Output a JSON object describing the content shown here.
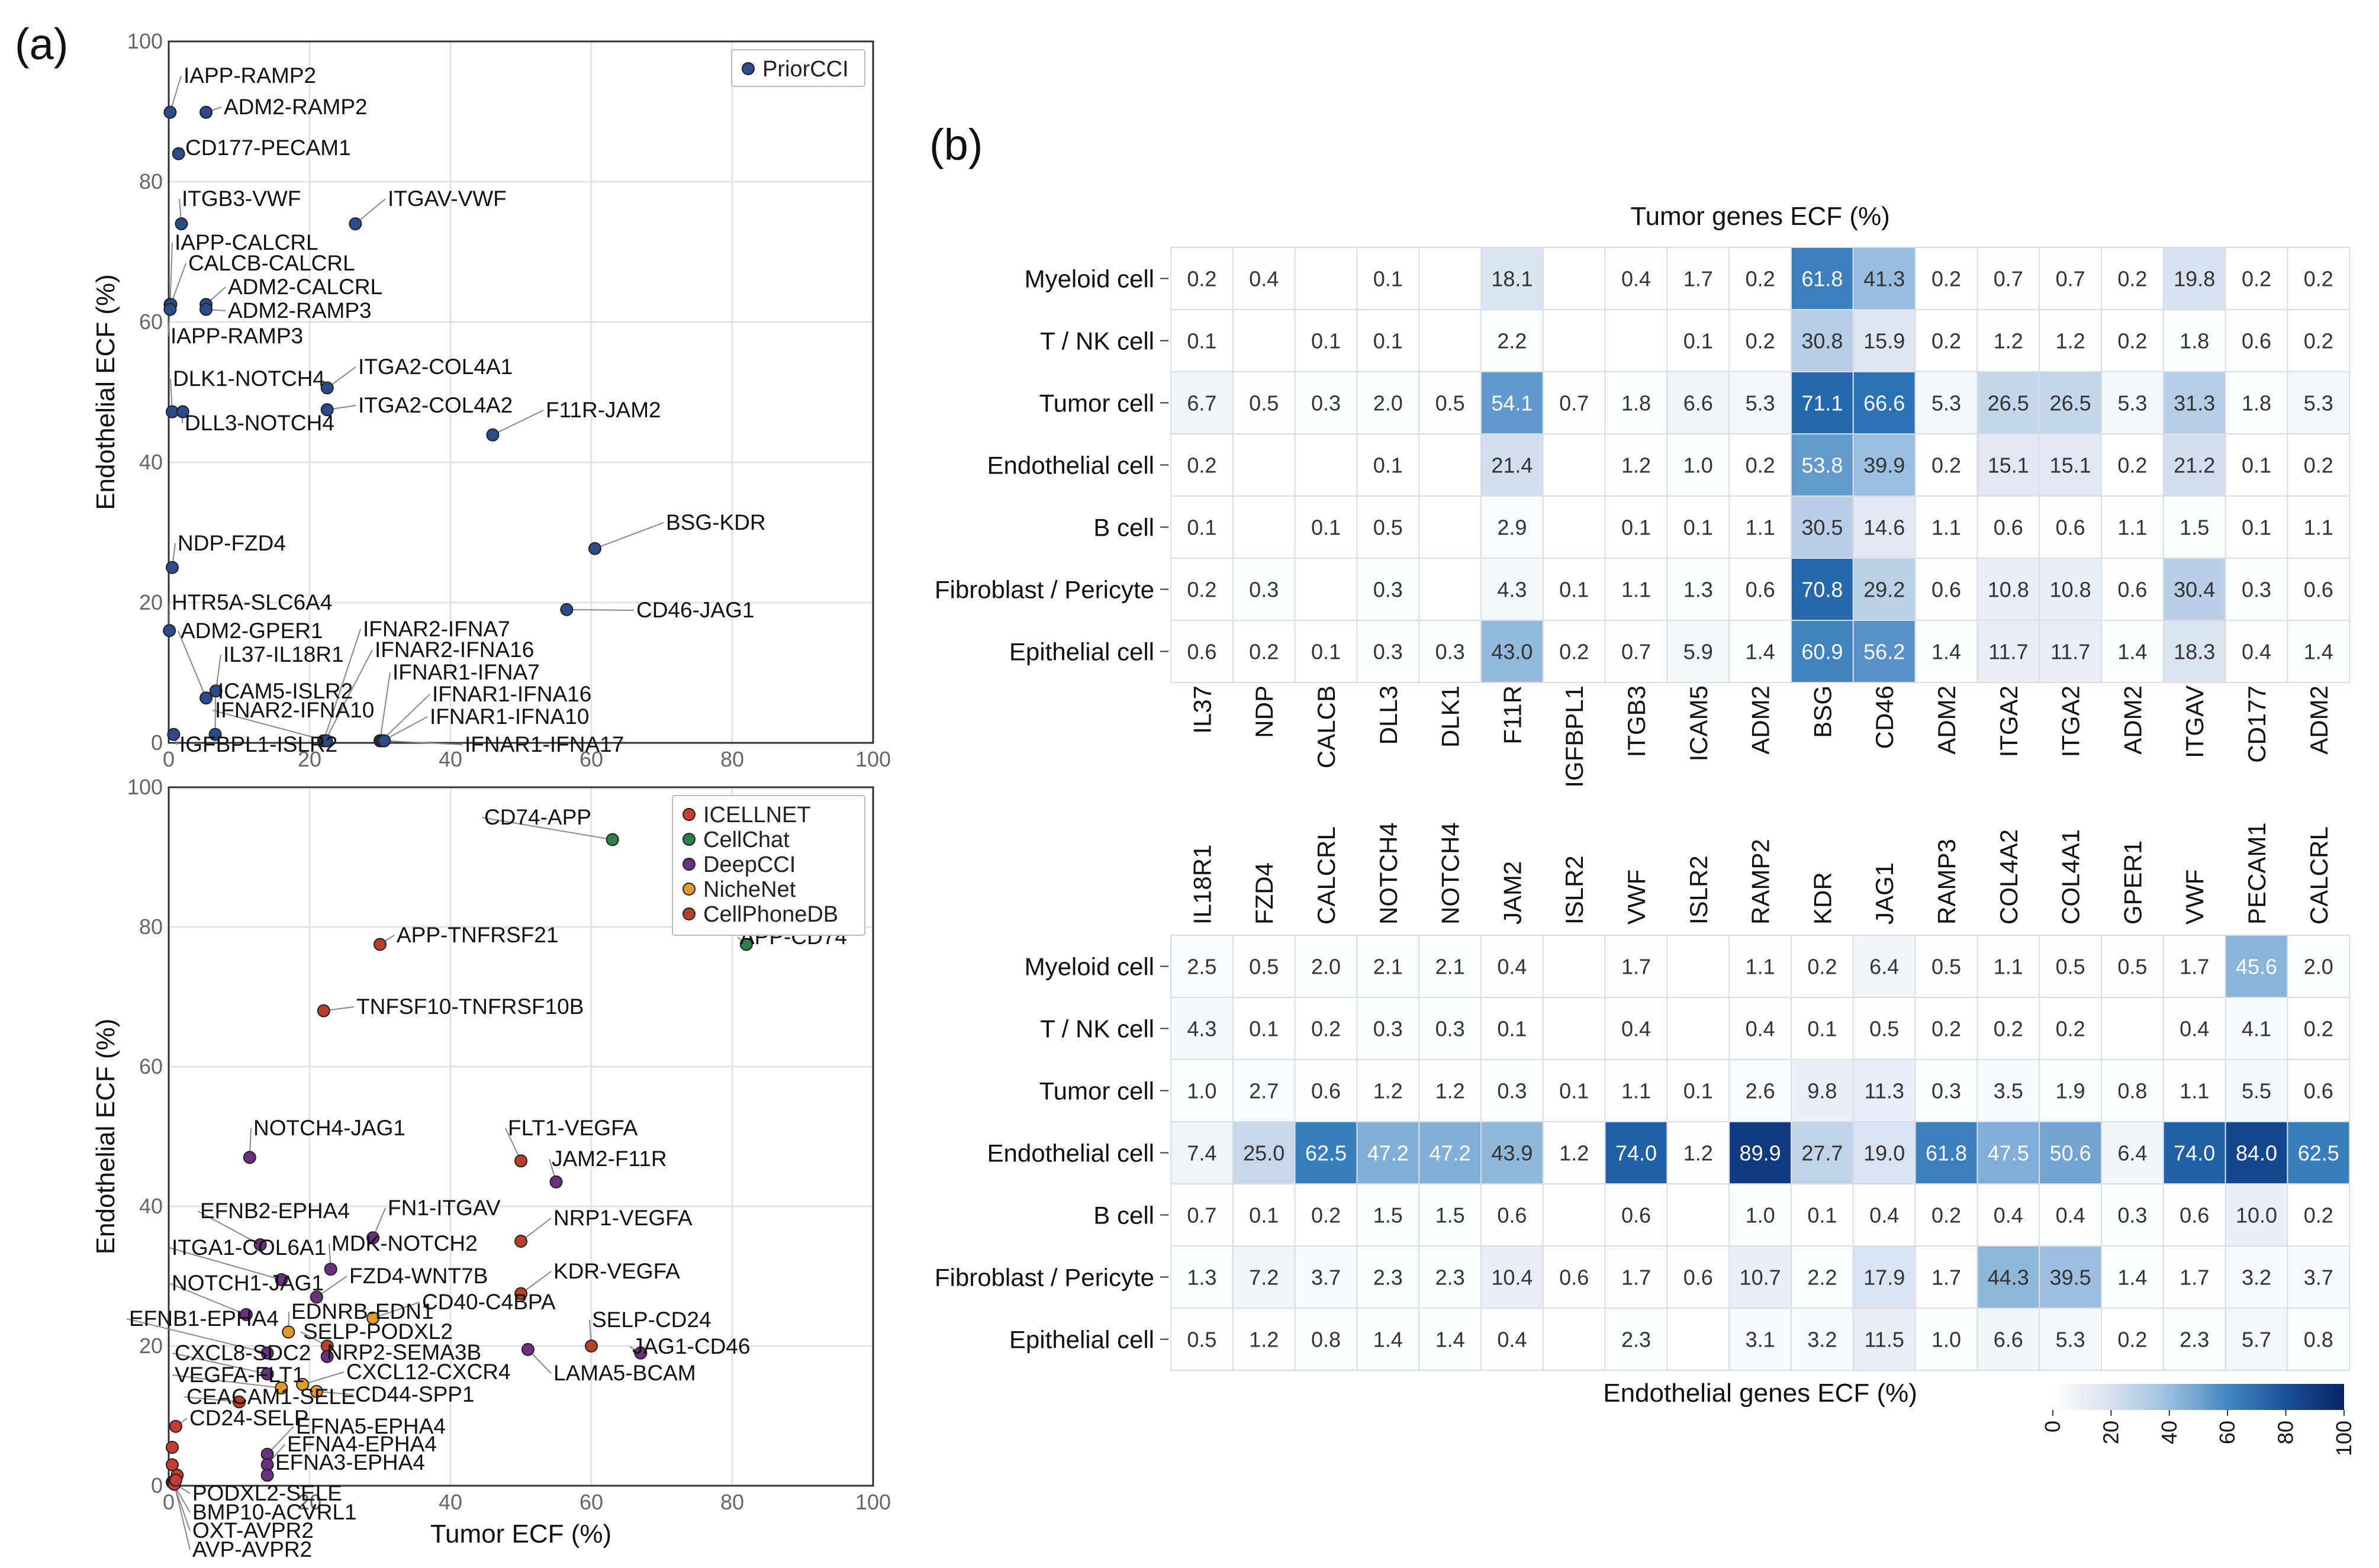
{
  "panel_labels": {
    "a": "(a)",
    "b": "(b)"
  },
  "colors": {
    "PriorCCI": "#2b4a8a",
    "ICELLNET": "#c83a32",
    "CellChat": "#2e7d4a",
    "DeepCCI": "#6a2f80",
    "NicheNet": "#e09a2a",
    "CellPhoneDB": "#b5402a",
    "heat_low": "#ffffff",
    "heat_high": "#0b2a6b"
  },
  "chart_data": [
    {
      "type": "scatter",
      "id": "scatter-top",
      "xlim": [
        0,
        100
      ],
      "ylim": [
        0,
        100
      ],
      "xticks": [
        "0",
        "20",
        "40",
        "60",
        "80",
        "100"
      ],
      "yticks": [
        "0",
        "20",
        "40",
        "60",
        "80",
        "100"
      ],
      "xlabel": "",
      "ylabel": "Endothelial ECF (%)",
      "grid": true,
      "legend": {
        "position": "top-right",
        "entries": [
          {
            "name": "PriorCCI",
            "color_key": "PriorCCI"
          }
        ]
      },
      "points": [
        {
          "label": "IAPP-RAMP2",
          "x": 0.2,
          "y": 89.9,
          "g": "PriorCCI"
        },
        {
          "label": "ADM2-RAMP2",
          "x": 5.3,
          "y": 89.9,
          "g": "PriorCCI"
        },
        {
          "label": "CD177-PECAM1",
          "x": 1.4,
          "y": 84.0,
          "g": "PriorCCI"
        },
        {
          "label": "ITGB3-VWF",
          "x": 1.8,
          "y": 74.0,
          "g": "PriorCCI"
        },
        {
          "label": "ITGAV-VWF",
          "x": 26.5,
          "y": 74.0,
          "g": "PriorCCI"
        },
        {
          "label": "IAPP-CALCRL",
          "x": 0.2,
          "y": 62.5,
          "g": "PriorCCI"
        },
        {
          "label": "CALCB-CALCRL",
          "x": 0.3,
          "y": 62.5,
          "g": "PriorCCI"
        },
        {
          "label": "ADM2-CALCRL",
          "x": 5.3,
          "y": 62.5,
          "g": "PriorCCI"
        },
        {
          "label": "ADM2-RAMP3",
          "x": 5.3,
          "y": 61.8,
          "g": "PriorCCI"
        },
        {
          "label": "IAPP-RAMP3",
          "x": 0.2,
          "y": 61.8,
          "g": "PriorCCI"
        },
        {
          "label": "DLK1-NOTCH4",
          "x": 0.5,
          "y": 47.2,
          "g": "PriorCCI"
        },
        {
          "label": "ITGA2-COL4A1",
          "x": 22.5,
          "y": 50.6,
          "g": "PriorCCI"
        },
        {
          "label": "ITGA2-COL4A2",
          "x": 22.5,
          "y": 47.5,
          "g": "PriorCCI"
        },
        {
          "label": "DLL3-NOTCH4",
          "x": 2.0,
          "y": 47.2,
          "g": "PriorCCI"
        },
        {
          "label": "F11R-JAM2",
          "x": 46.0,
          "y": 43.9,
          "g": "PriorCCI"
        },
        {
          "label": "BSG-KDR",
          "x": 60.5,
          "y": 27.7,
          "g": "PriorCCI"
        },
        {
          "label": "NDP-FZD4",
          "x": 0.5,
          "y": 25.0,
          "g": "PriorCCI"
        },
        {
          "label": "CD46-JAG1",
          "x": 56.5,
          "y": 19.0,
          "g": "PriorCCI"
        },
        {
          "label": "HTR5A-SLC6A4",
          "x": 0.1,
          "y": 16.0,
          "g": "PriorCCI"
        },
        {
          "label": "ADM2-GPER1",
          "x": 5.3,
          "y": 6.4,
          "g": "PriorCCI"
        },
        {
          "label": "IL37-IL18R1",
          "x": 6.7,
          "y": 7.4,
          "g": "PriorCCI"
        },
        {
          "label": "ICAM5-ISLR2",
          "x": 6.6,
          "y": 1.2,
          "g": "PriorCCI"
        },
        {
          "label": "IFNAR2-IFNA7",
          "x": 22.0,
          "y": 0.3,
          "g": "PriorCCI"
        },
        {
          "label": "IFNAR2-IFNA16",
          "x": 22.2,
          "y": 0.3,
          "g": "PriorCCI"
        },
        {
          "label": "IFNAR1-IFNA7",
          "x": 30.0,
          "y": 0.3,
          "g": "PriorCCI"
        },
        {
          "label": "IFNAR2-IFNA10",
          "x": 22.4,
          "y": 0.3,
          "g": "PriorCCI"
        },
        {
          "label": "IFNAR1-IFNA16",
          "x": 30.2,
          "y": 0.3,
          "g": "PriorCCI"
        },
        {
          "label": "IFNAR1-IFNA10",
          "x": 30.4,
          "y": 0.3,
          "g": "PriorCCI"
        },
        {
          "label": "IGFBPL1-ISLR2",
          "x": 0.7,
          "y": 1.2,
          "g": "PriorCCI"
        },
        {
          "label": "IFNAR1-IFNA17",
          "x": 30.6,
          "y": 0.3,
          "g": "PriorCCI"
        }
      ]
    },
    {
      "type": "scatter",
      "id": "scatter-bottom",
      "xlim": [
        0,
        100
      ],
      "ylim": [
        0,
        100
      ],
      "xticks": [
        "0",
        "20",
        "40",
        "60",
        "80",
        "100"
      ],
      "yticks": [
        "0",
        "20",
        "40",
        "60",
        "80",
        "100"
      ],
      "xlabel": "Tumor ECF (%)",
      "ylabel": "Endothelial ECF (%)",
      "grid": true,
      "legend": {
        "position": "top-right",
        "entries": [
          {
            "name": "ICELLNET",
            "color_key": "ICELLNET"
          },
          {
            "name": "CellChat",
            "color_key": "CellChat"
          },
          {
            "name": "DeepCCI",
            "color_key": "DeepCCI"
          },
          {
            "name": "NicheNet",
            "color_key": "NicheNet"
          },
          {
            "name": "CellPhoneDB",
            "color_key": "CellPhoneDB"
          }
        ]
      },
      "points": [
        {
          "label": "CD74-APP",
          "x": 63.0,
          "y": 92.5,
          "g": "CellChat"
        },
        {
          "label": "APP-TNFRSF21",
          "x": 30.0,
          "y": 77.5,
          "g": "CellPhoneDB"
        },
        {
          "label": "APP-CD74",
          "x": 82.0,
          "y": 77.5,
          "g": "CellChat"
        },
        {
          "label": "TNFSF10-TNFRSF10B",
          "x": 22.0,
          "y": 68.0,
          "g": "CellPhoneDB"
        },
        {
          "label": "NOTCH4-JAG1",
          "x": 11.5,
          "y": 47.0,
          "g": "DeepCCI"
        },
        {
          "label": "FLT1-VEGFA",
          "x": 50.0,
          "y": 46.5,
          "g": "CellPhoneDB"
        },
        {
          "label": "JAM2-F11R",
          "x": 55.0,
          "y": 43.5,
          "g": "DeepCCI"
        },
        {
          "label": "EFNB2-EPHA4",
          "x": 13.0,
          "y": 34.5,
          "g": "DeepCCI"
        },
        {
          "label": "FN1-ITGAV",
          "x": 29.0,
          "y": 35.5,
          "g": "DeepCCI"
        },
        {
          "label": "NRP1-VEGFA",
          "x": 50.0,
          "y": 35.0,
          "g": "CellPhoneDB"
        },
        {
          "label": "ITGA1-COL6A1",
          "x": 16.0,
          "y": 29.5,
          "g": "DeepCCI"
        },
        {
          "label": "MDK-NOTCH2",
          "x": 23.0,
          "y": 31.0,
          "g": "DeepCCI"
        },
        {
          "label": "FZD4-WNT7B",
          "x": 21.0,
          "y": 27.0,
          "g": "DeepCCI"
        },
        {
          "label": "KDR-VEGFA",
          "x": 50.0,
          "y": 27.5,
          "g": "CellPhoneDB"
        },
        {
          "label": "NOTCH1-JAG1",
          "x": 11.0,
          "y": 24.5,
          "g": "DeepCCI"
        },
        {
          "label": "CD40-C4BPA",
          "x": 29.0,
          "y": 24.0,
          "g": "NicheNet"
        },
        {
          "label": "EFNB1-EPHA4",
          "x": 14.0,
          "y": 19.0,
          "g": "DeepCCI"
        },
        {
          "label": "EDNRB-EDN1",
          "x": 17.0,
          "y": 22.0,
          "g": "NicheNet"
        },
        {
          "label": "SELP-PODXL2",
          "x": 22.5,
          "y": 20.0,
          "g": "CellPhoneDB"
        },
        {
          "label": "SELP-CD24",
          "x": 60.0,
          "y": 20.0,
          "g": "CellPhoneDB"
        },
        {
          "label": "JAG1-CD46",
          "x": 67.0,
          "y": 19.0,
          "g": "DeepCCI"
        },
        {
          "label": "LAMA5-BCAM",
          "x": 51.0,
          "y": 19.5,
          "g": "DeepCCI"
        },
        {
          "label": "NRP2-SEMA3B",
          "x": 22.5,
          "y": 18.5,
          "g": "DeepCCI"
        },
        {
          "label": "CXCL8-SDC2",
          "x": 14.0,
          "y": 16.0,
          "g": "DeepCCI"
        },
        {
          "label": "CXCL12-CXCR4",
          "x": 19.0,
          "y": 14.5,
          "g": "NicheNet"
        },
        {
          "label": "VEGFA-FLT1",
          "x": 16.0,
          "y": 14.0,
          "g": "NicheNet"
        },
        {
          "label": "CD44-SPP1",
          "x": 21.0,
          "y": 13.5,
          "g": "NicheNet"
        },
        {
          "label": "CEACAM1-SELE",
          "x": 10.0,
          "y": 12.0,
          "g": "CellPhoneDB"
        },
        {
          "label": "CD24-SELP",
          "x": 1.0,
          "y": 8.5,
          "g": "ICELLNET"
        },
        {
          "label": "EFNA5-EPHA4",
          "x": 14.0,
          "y": 4.5,
          "g": "DeepCCI"
        },
        {
          "label": "EFNA4-EPHA4",
          "x": 14.0,
          "y": 3.0,
          "g": "DeepCCI"
        },
        {
          "label": "EFNA3-EPHA4",
          "x": 14.0,
          "y": 1.5,
          "g": "DeepCCI"
        },
        {
          "label": "PODXL2-SELE",
          "x": 0.5,
          "y": 0.5,
          "g": "CellPhoneDB"
        },
        {
          "label": "BMP10-ACVRL1",
          "x": 0.6,
          "y": 0.4,
          "g": "ICELLNET"
        },
        {
          "label": "OXT-AVPR2",
          "x": 0.7,
          "y": 0.3,
          "g": "ICELLNET"
        },
        {
          "label": "AVP-AVPR2",
          "x": 0.8,
          "y": 0.2,
          "g": "ICELLNET"
        },
        {
          "label": "",
          "x": 0.5,
          "y": 5.5,
          "g": "ICELLNET"
        },
        {
          "label": "",
          "x": 0.5,
          "y": 3.0,
          "g": "ICELLNET"
        },
        {
          "label": "",
          "x": 1.2,
          "y": 1.5,
          "g": "ICELLNET"
        },
        {
          "label": "",
          "x": 1.0,
          "y": 0.8,
          "g": "ICELLNET"
        }
      ]
    },
    {
      "type": "heatmap",
      "id": "heatmap-top",
      "title": "Tumor genes ECF (%)",
      "rows": [
        "Myeloid cell",
        "T / NK cell",
        "Tumor cell",
        "Endothelial cell",
        "B cell",
        "Fibroblast / Pericyte",
        "Epithelial cell"
      ],
      "columns": [
        "IL37",
        "NDP",
        "CALCB",
        "DLL3",
        "DLK1",
        "F11R",
        "IGFBPL1",
        "ITGB3",
        "ICAM5",
        "ADM2",
        "BSG",
        "CD46",
        "ADM2",
        "ITGA2",
        "ITGA2",
        "ADM2",
        "ITGAV",
        "CD177",
        "ADM2"
      ],
      "values": [
        [
          "0.2",
          "0.4",
          "",
          "0.1",
          "",
          "18.1",
          "",
          "0.4",
          "1.7",
          "0.2",
          "61.8",
          "41.3",
          "0.2",
          "0.7",
          "0.7",
          "0.2",
          "19.8",
          "0.2",
          "0.2"
        ],
        [
          "0.1",
          "",
          "0.1",
          "0.1",
          "",
          "2.2",
          "",
          "",
          "0.1",
          "0.2",
          "30.8",
          "15.9",
          "0.2",
          "1.2",
          "1.2",
          "0.2",
          "1.8",
          "0.6",
          "0.2"
        ],
        [
          "6.7",
          "0.5",
          "0.3",
          "2.0",
          "0.5",
          "54.1",
          "0.7",
          "1.8",
          "6.6",
          "5.3",
          "71.1",
          "66.6",
          "5.3",
          "26.5",
          "26.5",
          "5.3",
          "31.3",
          "1.8",
          "5.3"
        ],
        [
          "0.2",
          "",
          "",
          "0.1",
          "",
          "21.4",
          "",
          "1.2",
          "1.0",
          "0.2",
          "53.8",
          "39.9",
          "0.2",
          "15.1",
          "15.1",
          "0.2",
          "21.2",
          "0.1",
          "0.2"
        ],
        [
          "0.1",
          "",
          "0.1",
          "0.5",
          "",
          "2.9",
          "",
          "0.1",
          "0.1",
          "1.1",
          "30.5",
          "14.6",
          "1.1",
          "0.6",
          "0.6",
          "1.1",
          "1.5",
          "0.1",
          "1.1"
        ],
        [
          "0.2",
          "0.3",
          "",
          "0.3",
          "",
          "4.3",
          "0.1",
          "1.1",
          "1.3",
          "0.6",
          "70.8",
          "29.2",
          "0.6",
          "10.8",
          "10.8",
          "0.6",
          "30.4",
          "0.3",
          "0.6"
        ],
        [
          "0.6",
          "0.2",
          "0.1",
          "0.3",
          "0.3",
          "43.0",
          "0.2",
          "0.7",
          "5.9",
          "1.4",
          "60.9",
          "56.2",
          "1.4",
          "11.7",
          "11.7",
          "1.4",
          "18.3",
          "0.4",
          "1.4"
        ]
      ]
    },
    {
      "type": "heatmap",
      "id": "heatmap-bottom",
      "title": "Endothelial genes ECF (%)",
      "rows": [
        "Myeloid cell",
        "T / NK cell",
        "Tumor cell",
        "Endothelial cell",
        "B cell",
        "Fibroblast / Pericyte",
        "Epithelial cell"
      ],
      "columns": [
        "IL18R1",
        "FZD4",
        "CALCRL",
        "NOTCH4",
        "NOTCH4",
        "JAM2",
        "ISLR2",
        "VWF",
        "ISLR2",
        "RAMP2",
        "KDR",
        "JAG1",
        "RAMP3",
        "COL4A2",
        "COL4A1",
        "GPER1",
        "VWF",
        "PECAM1",
        "CALCRL"
      ],
      "values": [
        [
          "2.5",
          "0.5",
          "2.0",
          "2.1",
          "2.1",
          "0.4",
          "",
          "1.7",
          "",
          "1.1",
          "0.2",
          "6.4",
          "0.5",
          "1.1",
          "0.5",
          "0.5",
          "1.7",
          "45.6",
          "2.0"
        ],
        [
          "4.3",
          "0.1",
          "0.2",
          "0.3",
          "0.3",
          "0.1",
          "",
          "0.4",
          "",
          "0.4",
          "0.1",
          "0.5",
          "0.2",
          "0.2",
          "0.2",
          "",
          "0.4",
          "4.1",
          "0.2"
        ],
        [
          "1.0",
          "2.7",
          "0.6",
          "1.2",
          "1.2",
          "0.3",
          "0.1",
          "1.1",
          "0.1",
          "2.6",
          "9.8",
          "11.3",
          "0.3",
          "3.5",
          "1.9",
          "0.8",
          "1.1",
          "5.5",
          "0.6"
        ],
        [
          "7.4",
          "25.0",
          "62.5",
          "47.2",
          "47.2",
          "43.9",
          "1.2",
          "74.0",
          "1.2",
          "89.9",
          "27.7",
          "19.0",
          "61.8",
          "47.5",
          "50.6",
          "6.4",
          "74.0",
          "84.0",
          "62.5"
        ],
        [
          "0.7",
          "0.1",
          "0.2",
          "1.5",
          "1.5",
          "0.6",
          "",
          "0.6",
          "",
          "1.0",
          "0.1",
          "0.4",
          "0.2",
          "0.4",
          "0.4",
          "0.3",
          "0.6",
          "10.0",
          "0.2"
        ],
        [
          "1.3",
          "7.2",
          "3.7",
          "2.3",
          "2.3",
          "10.4",
          "0.6",
          "1.7",
          "0.6",
          "10.7",
          "2.2",
          "17.9",
          "1.7",
          "44.3",
          "39.5",
          "1.4",
          "1.7",
          "3.2",
          "3.7"
        ],
        [
          "0.5",
          "1.2",
          "0.8",
          "1.4",
          "1.4",
          "0.4",
          "",
          "2.3",
          "",
          "3.1",
          "3.2",
          "11.5",
          "1.0",
          "6.6",
          "5.3",
          "0.2",
          "2.3",
          "5.7",
          "0.8"
        ]
      ]
    }
  ],
  "colorbar": {
    "ticks": [
      "0",
      "20",
      "40",
      "60",
      "80",
      "100"
    ],
    "min": 0,
    "max": 100
  }
}
